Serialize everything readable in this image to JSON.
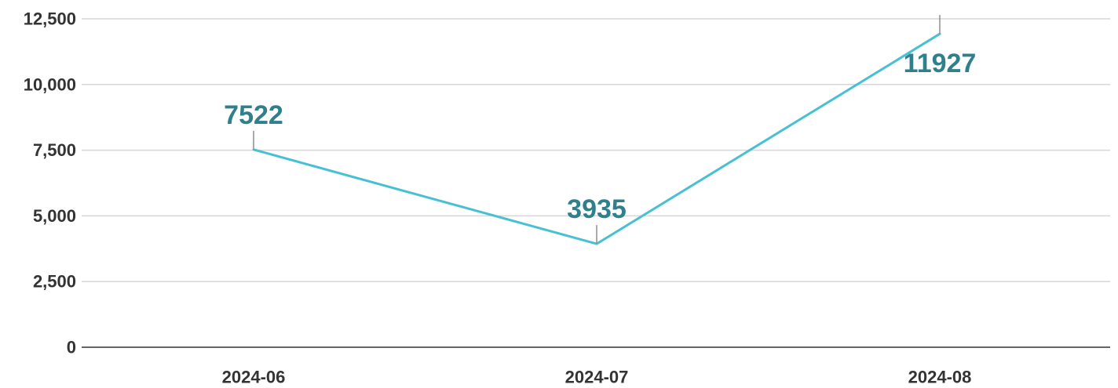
{
  "chart_data": {
    "type": "line",
    "title": "",
    "xlabel": "",
    "ylabel": "",
    "categories": [
      "2024-06",
      "2024-07",
      "2024-08"
    ],
    "series": [
      {
        "values": [
          7522,
          3935,
          11927
        ]
      }
    ],
    "data_labels": [
      "7522",
      "3935",
      "11927"
    ],
    "y_ticks": [
      0,
      2500,
      5000,
      7500,
      10000,
      12500
    ],
    "y_tick_labels": [
      "0",
      "2,500",
      "5,000",
      "7,500",
      "10,000",
      "12,500"
    ],
    "ylim": [
      0,
      12500
    ],
    "grid": true,
    "legend": "none",
    "colors": {
      "line": "#47c0d3",
      "data_label": "#2f7f8c",
      "grid": "#d6d6d6",
      "axis": "#333333",
      "tick_text": "#333333"
    }
  }
}
